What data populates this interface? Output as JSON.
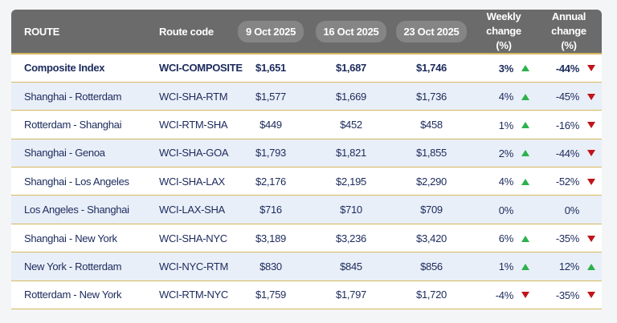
{
  "table": {
    "columns": [
      "ROUTE",
      "Route code",
      "9 Oct 2025",
      "16 Oct 2025",
      "23 Oct 2025",
      "Weekly change (%)",
      "Annual change (%)"
    ],
    "rows": [
      [
        "Composite Index",
        "WCI-COMPOSITE",
        "$1,651",
        "$1,687",
        "$1,746",
        "3%",
        "-44%"
      ],
      [
        "Shanghai - Rotterdam",
        "WCI-SHA-RTM",
        "$1,577",
        "$1,669",
        "$1,736",
        "4%",
        "-45%"
      ],
      [
        "Rotterdam - Shanghai",
        "WCI-RTM-SHA",
        "$449",
        "$452",
        "$458",
        "1%",
        "-16%"
      ],
      [
        "Shanghai - Genoa",
        "WCI-SHA-GOA",
        "$1,793",
        "$1,821",
        "$1,855",
        "2%",
        "-44%"
      ],
      [
        "Shanghai - Los Angeles",
        "WCI-SHA-LAX",
        "$2,176",
        "$2,195",
        "$2,290",
        "4%",
        "-52%"
      ],
      [
        "Los Angeles - Shanghai",
        "WCI-LAX-SHA",
        "$716",
        "$710",
        "$709",
        "0%",
        "0%"
      ],
      [
        "Shanghai - New York",
        "WCI-SHA-NYC",
        "$3,189",
        "$3,236",
        "$3,420",
        "6%",
        "-35%"
      ],
      [
        "New York - Rotterdam",
        "WCI-NYC-RTM",
        "$830",
        "$845",
        "$856",
        "1%",
        "12%"
      ],
      [
        "Rotterdam - New York",
        "WCI-RTM-NYC",
        "$1,759",
        "$1,797",
        "$1,720",
        "-4%",
        "-35%"
      ]
    ]
  }
}
